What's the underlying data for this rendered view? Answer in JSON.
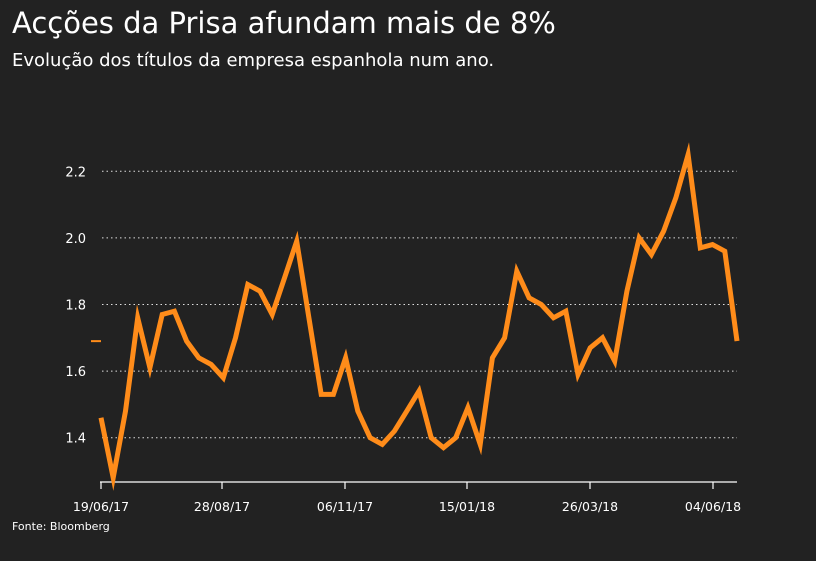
{
  "title": "Acções da Prisa afundam mais de 8%",
  "subtitle": "Evolução dos títulos da empresa espanhola num ano.",
  "source": "Fonte: Bloomberg",
  "colors": {
    "background": "#222222",
    "line": "#FF8C1A",
    "grid": "#FFFFFF",
    "text": "#FFFFFF"
  },
  "chart_data": {
    "type": "line",
    "x_tick_labels": [
      "19/06/17",
      "28/08/17",
      "06/11/17",
      "15/01/18",
      "26/03/18",
      "04/06/18"
    ],
    "y_ticks": [
      1.4,
      1.6,
      1.8,
      2.0,
      2.2
    ],
    "ylim": [
      1.27,
      2.36
    ],
    "grid": "horizontal-dotted",
    "last_value_marker": 1.69,
    "series": [
      {
        "values": [
          1.46,
          1.28,
          1.48,
          1.76,
          1.61,
          1.77,
          1.78,
          1.69,
          1.64,
          1.62,
          1.58,
          1.7,
          1.86,
          1.84,
          1.77,
          1.88,
          1.99,
          1.76,
          1.53,
          1.53,
          1.64,
          1.48,
          1.4,
          1.38,
          1.42,
          1.48,
          1.54,
          1.4,
          1.37,
          1.4,
          1.49,
          1.38,
          1.64,
          1.7,
          1.9,
          1.82,
          1.8,
          1.76,
          1.78,
          1.59,
          1.67,
          1.7,
          1.63,
          1.84,
          2.0,
          1.95,
          2.02,
          2.12,
          2.25,
          1.97,
          1.98,
          1.96,
          1.69
        ]
      }
    ]
  }
}
